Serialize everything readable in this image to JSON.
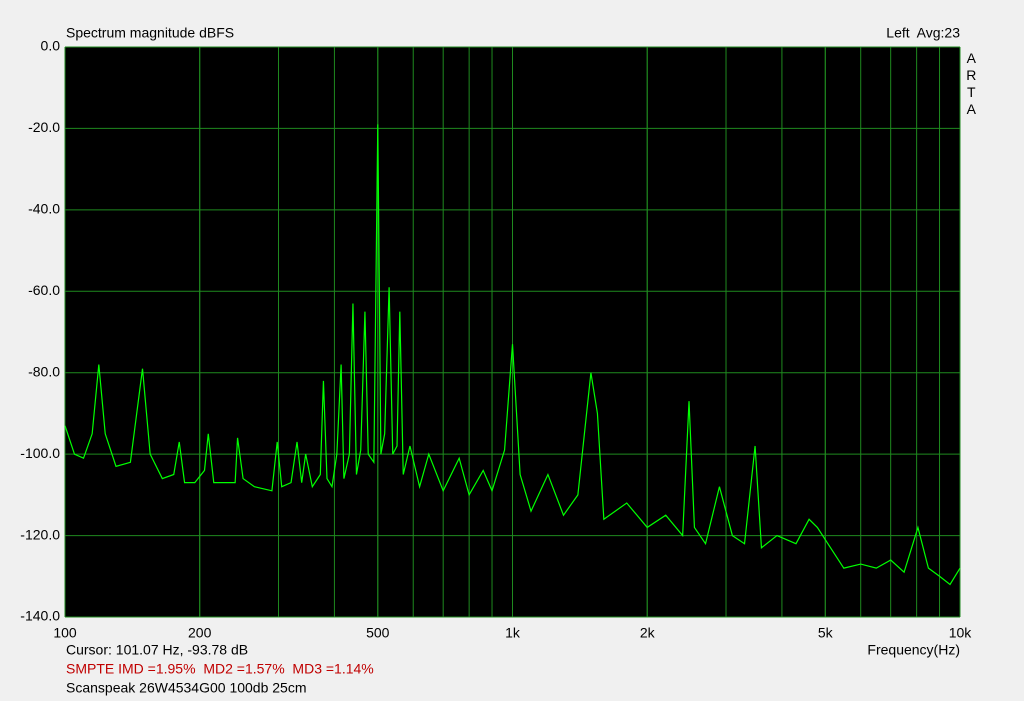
{
  "chart_data": {
    "type": "line",
    "title": "Spectrum magnitude dBFS",
    "channel_label": "Left  Avg:23",
    "brand": "ARTA",
    "xlabel": "Frequency(Hz)",
    "cursor_text": "Cursor: 101.07 Hz, -93.78 dB",
    "distortion_text": "SMPTE IMD =1.95%  MD2 =1.57%  MD3 =1.14%",
    "note": "Scanspeak 26W4534G00 100db 25cm",
    "xscale": "log",
    "grid": true,
    "minor_grid": true,
    "background": "#000000",
    "xlim": [
      100,
      10000
    ],
    "ylim": [
      -140,
      0
    ],
    "xticks": [
      100,
      200,
      500,
      {
        "value": 1000,
        "label": "1k"
      },
      {
        "value": 2000,
        "label": "2k"
      },
      {
        "value": 5000,
        "label": "5k"
      },
      {
        "value": 10000,
        "label": "10k"
      }
    ],
    "yticks": [
      {
        "value": 0,
        "label": "0.0"
      },
      {
        "value": -20,
        "label": "-20.0"
      },
      {
        "value": -40,
        "label": "-40.0"
      },
      {
        "value": -60,
        "label": "-60.0"
      },
      {
        "value": -80,
        "label": "-80.0"
      },
      {
        "value": -100,
        "label": "-100.0"
      },
      {
        "value": -120,
        "label": "-120.0"
      },
      {
        "value": -140,
        "label": "-140.0"
      }
    ],
    "x": [
      100,
      105,
      110,
      115,
      119,
      123,
      130,
      140,
      149,
      155,
      165,
      175,
      180,
      185,
      195,
      205,
      209,
      215,
      225,
      240,
      243,
      250,
      265,
      290,
      298,
      305,
      320,
      330,
      338,
      345,
      357,
      372,
      378,
      385,
      395,
      405,
      414,
      420,
      432,
      440,
      448,
      458,
      468,
      476,
      490,
      500,
      508,
      518,
      530,
      540,
      552,
      560,
      570,
      590,
      620,
      650,
      700,
      760,
      800,
      860,
      900,
      960,
      1000,
      1040,
      1100,
      1200,
      1300,
      1400,
      1497,
      1548,
      1600,
      1800,
      2000,
      2200,
      2400,
      2480,
      2550,
      2700,
      2900,
      3100,
      3300,
      3484,
      3600,
      3900,
      4300,
      4600,
      4800,
      5000,
      5500,
      6000,
      6500,
      7000,
      7500,
      8054,
      8500,
      9000,
      9500,
      10000
    ],
    "series": [
      {
        "color": "#00ff00",
        "values": [
          -93,
          -100,
          -101,
          -95,
          -78,
          -95,
          -103,
          -102,
          -79,
          -100,
          -106,
          -105,
          -97,
          -107,
          -107,
          -104,
          -95,
          -107,
          -107,
          -107,
          -96,
          -106,
          -108,
          -109,
          -97,
          -108,
          -107,
          -97,
          -107,
          -100,
          -108,
          -105,
          -82,
          -106,
          -108,
          -100,
          -78,
          -106,
          -100,
          -63,
          -105,
          -99,
          -65,
          -100,
          -102,
          -19,
          -100,
          -95,
          -59,
          -100,
          -98,
          -65,
          -105,
          -98,
          -108,
          -100,
          -109,
          -101,
          -110,
          -104,
          -109,
          -99,
          -73,
          -105,
          -114,
          -105,
          -115,
          -110,
          -80,
          -90,
          -116,
          -112,
          -118,
          -115,
          -120,
          -87,
          -118,
          -122,
          -108,
          -120,
          -122,
          -98,
          -123,
          -120,
          -122,
          -116,
          -118,
          -121,
          -128,
          -127,
          -128,
          -126,
          -129,
          -118,
          -128,
          -130,
          -132,
          -128
        ]
      }
    ]
  }
}
